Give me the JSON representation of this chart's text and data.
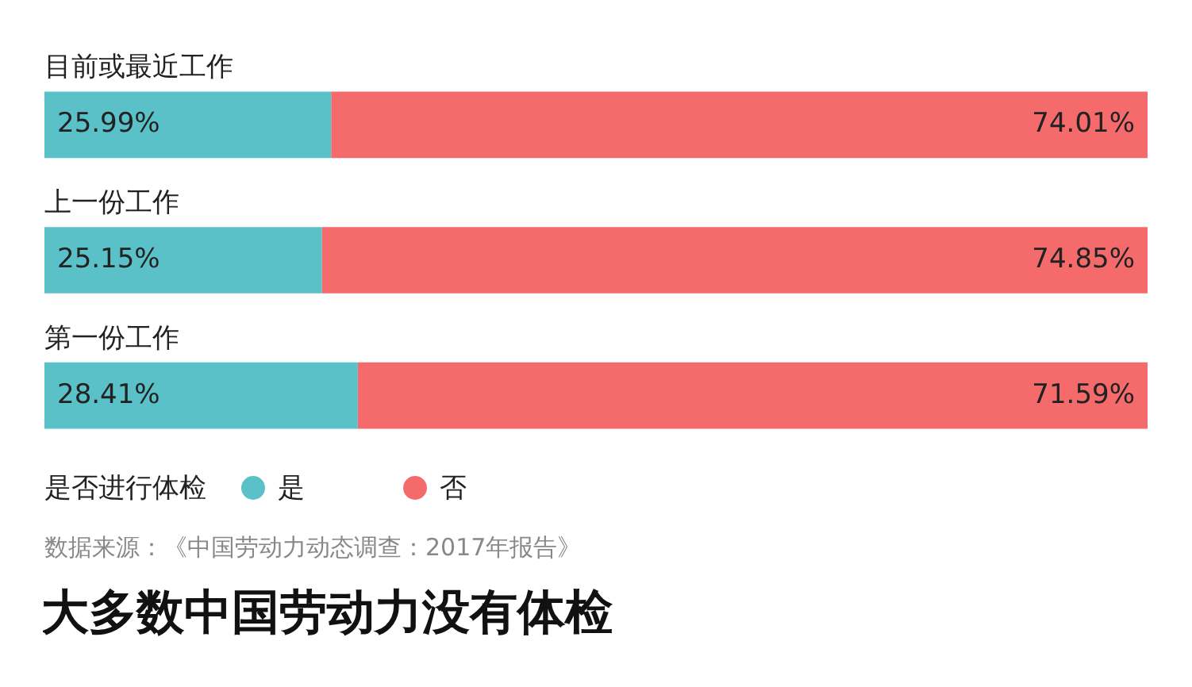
{
  "chart_data": {
    "type": "bar",
    "orientation": "horizontal",
    "stacked": true,
    "title": "大多数中国劳动力没有体检",
    "legend_title": "是否进行体检",
    "legend": "bottom",
    "tick_labels": false,
    "grid": false,
    "categories": [
      "目前或最近工作",
      "上一份工作",
      "第一份工作"
    ],
    "xlim": [
      0,
      100
    ],
    "series": [
      {
        "name": "是",
        "color": "#5bc1c9",
        "values": [
          25.99,
          25.15,
          28.41
        ],
        "value_labels": [
          "25.99%",
          "25.15%",
          "28.41%"
        ]
      },
      {
        "name": "否",
        "color": "#f56a6b",
        "values": [
          74.01,
          74.85,
          71.59
        ],
        "value_labels": [
          "74.01%",
          "74.85%",
          "71.59%"
        ]
      }
    ],
    "annotations": [
      "数据来源：《中国劳动力动态调查：2017年报告》"
    ]
  }
}
